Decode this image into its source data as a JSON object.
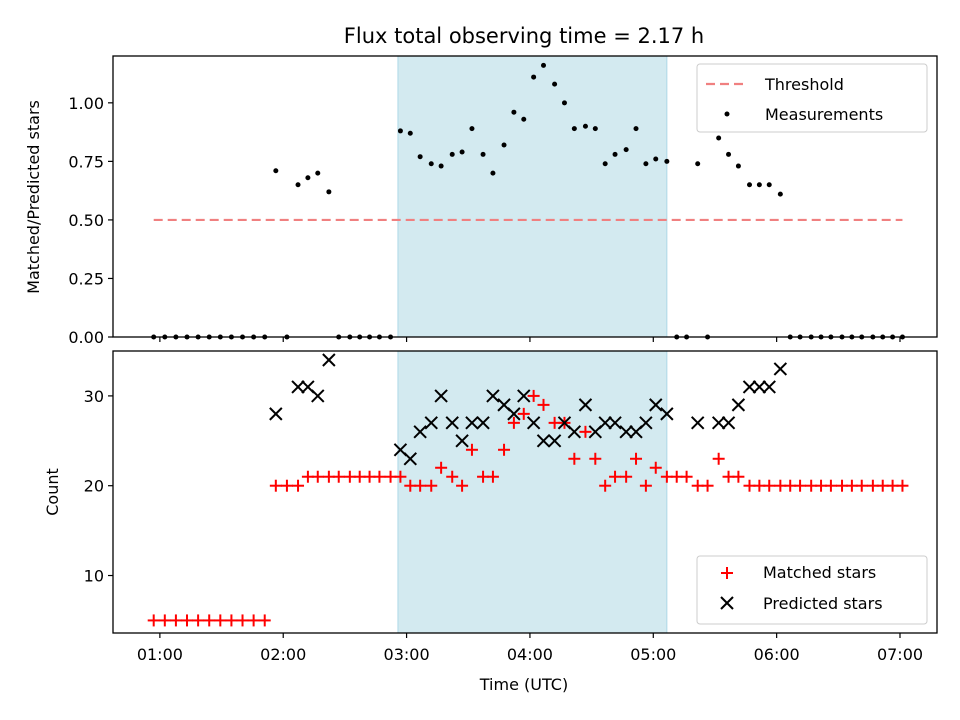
{
  "chart_data": [
    {
      "type": "scatter",
      "title": "Flux total observing time = 2.17 h",
      "ylabel": "Matched/Predicted stars",
      "xlabel": "",
      "x_range_hours": [
        0.62,
        7.3
      ],
      "ylim": [
        0,
        1.2
      ],
      "y_ticks": [
        0.0,
        0.25,
        0.5,
        0.75,
        1.0
      ],
      "y_tick_labels": [
        "0.00",
        "0.25",
        "0.50",
        "0.75",
        "1.00"
      ],
      "x_ticks": [
        1,
        2,
        3,
        4,
        5,
        6,
        7
      ],
      "shaded_span_hours": [
        2.93,
        5.11
      ],
      "shaded_color": "#d3eaf0",
      "legend_position": "upper right",
      "threshold": {
        "name": "Threshold",
        "value": 0.5,
        "x_range_hours": [
          0.95,
          7.02
        ],
        "color": "#f08080",
        "style": "dashed"
      },
      "series": [
        {
          "name": "Measurements",
          "marker": "dot",
          "color": "#000000",
          "x": [
            0.95,
            1.04,
            1.13,
            1.22,
            1.31,
            1.4,
            1.49,
            1.58,
            1.67,
            1.76,
            1.85,
            1.94,
            2.03,
            2.12,
            2.2,
            2.28,
            2.37,
            2.45,
            2.54,
            2.62,
            2.7,
            2.78,
            2.87,
            2.95,
            3.03,
            3.11,
            3.2,
            3.28,
            3.37,
            3.45,
            3.53,
            3.62,
            3.7,
            3.79,
            3.87,
            3.95,
            4.03,
            4.11,
            4.2,
            4.28,
            4.36,
            4.45,
            4.53,
            4.61,
            4.69,
            4.78,
            4.86,
            4.94,
            5.02,
            5.11,
            5.19,
            5.27,
            5.36,
            5.44,
            5.53,
            5.61,
            5.69,
            5.78,
            5.86,
            5.94,
            6.03,
            6.11,
            6.19,
            6.28,
            6.36,
            6.44,
            6.53,
            6.61,
            6.69,
            6.78,
            6.86,
            6.94,
            7.02
          ],
          "y": [
            0.0,
            0.0,
            0.0,
            0.0,
            0.0,
            0.0,
            0.0,
            0.0,
            0.0,
            0.0,
            0.0,
            0.71,
            0.0,
            0.65,
            0.68,
            0.7,
            0.62,
            0.0,
            0.0,
            0.0,
            0.0,
            0.0,
            0.0,
            0.88,
            0.87,
            0.77,
            0.74,
            0.73,
            0.78,
            0.79,
            0.89,
            0.78,
            0.7,
            0.82,
            0.96,
            0.93,
            1.11,
            1.16,
            1.08,
            1.0,
            0.89,
            0.9,
            0.89,
            0.74,
            0.78,
            0.8,
            0.89,
            0.74,
            0.76,
            0.75,
            0.0,
            0.0,
            0.74,
            0.0,
            0.85,
            0.78,
            0.73,
            0.65,
            0.65,
            0.65,
            0.61,
            0.0,
            0.0,
            0.0,
            0.0,
            0.0,
            0.0,
            0.0,
            0.0,
            0.0,
            0.0,
            0.0,
            0.0
          ]
        }
      ]
    },
    {
      "type": "scatter",
      "title": "",
      "xlabel": "Time (UTC)",
      "ylabel": "Count",
      "x_range_hours": [
        0.62,
        7.3
      ],
      "ylim": [
        3.6,
        35
      ],
      "y_ticks": [
        10,
        20,
        30
      ],
      "y_tick_labels": [
        "10",
        "20",
        "30"
      ],
      "x_ticks": [
        1,
        2,
        3,
        4,
        5,
        6,
        7
      ],
      "x_tick_labels": [
        "01:00",
        "02:00",
        "03:00",
        "04:00",
        "05:00",
        "06:00",
        "07:00"
      ],
      "shaded_span_hours": [
        2.93,
        5.11
      ],
      "shaded_color": "#d3eaf0",
      "legend_position": "lower right",
      "series": [
        {
          "name": "Matched stars",
          "marker": "plus",
          "color": "#ff0000",
          "x": [
            0.95,
            1.04,
            1.13,
            1.22,
            1.31,
            1.4,
            1.49,
            1.58,
            1.67,
            1.76,
            1.85,
            1.94,
            2.03,
            2.12,
            2.2,
            2.28,
            2.37,
            2.45,
            2.54,
            2.62,
            2.7,
            2.78,
            2.87,
            2.95,
            3.03,
            3.11,
            3.2,
            3.28,
            3.37,
            3.45,
            3.53,
            3.62,
            3.7,
            3.79,
            3.87,
            3.95,
            4.03,
            4.11,
            4.2,
            4.28,
            4.36,
            4.45,
            4.53,
            4.61,
            4.69,
            4.78,
            4.86,
            4.94,
            5.02,
            5.11,
            5.19,
            5.27,
            5.36,
            5.44,
            5.53,
            5.61,
            5.69,
            5.78,
            5.86,
            5.94,
            6.03,
            6.11,
            6.19,
            6.28,
            6.36,
            6.44,
            6.53,
            6.61,
            6.69,
            6.78,
            6.86,
            6.94,
            7.02
          ],
          "y": [
            5,
            5,
            5,
            5,
            5,
            5,
            5,
            5,
            5,
            5,
            5,
            20,
            20,
            20,
            21,
            21,
            21,
            21,
            21,
            21,
            21,
            21,
            21,
            21,
            20,
            20,
            20,
            22,
            21,
            20,
            24,
            21,
            21,
            24,
            27,
            28,
            30,
            29,
            27,
            27,
            23,
            26,
            23,
            20,
            21,
            21,
            23,
            20,
            22,
            21,
            21,
            21,
            20,
            20,
            23,
            21,
            21,
            20,
            20,
            20,
            20,
            20,
            20,
            20,
            20,
            20,
            20,
            20,
            20,
            20,
            20,
            20,
            20
          ]
        },
        {
          "name": "Predicted stars",
          "marker": "x",
          "color": "#000000",
          "x": [
            1.94,
            2.12,
            2.2,
            2.28,
            2.37,
            2.95,
            3.03,
            3.11,
            3.2,
            3.28,
            3.37,
            3.45,
            3.53,
            3.62,
            3.7,
            3.79,
            3.87,
            3.95,
            4.03,
            4.11,
            4.2,
            4.28,
            4.36,
            4.45,
            4.53,
            4.61,
            4.69,
            4.78,
            4.86,
            4.94,
            5.02,
            5.11,
            5.36,
            5.53,
            5.61,
            5.69,
            5.78,
            5.86,
            5.94,
            6.03
          ],
          "y": [
            28,
            31,
            31,
            30,
            34,
            24,
            23,
            26,
            27,
            30,
            27,
            25,
            27,
            27,
            30,
            29,
            28,
            30,
            27,
            25,
            25,
            27,
            26,
            29,
            26,
            27,
            27,
            26,
            26,
            27,
            29,
            28,
            27,
            27,
            27,
            29,
            31,
            31,
            31,
            33
          ]
        }
      ]
    }
  ]
}
